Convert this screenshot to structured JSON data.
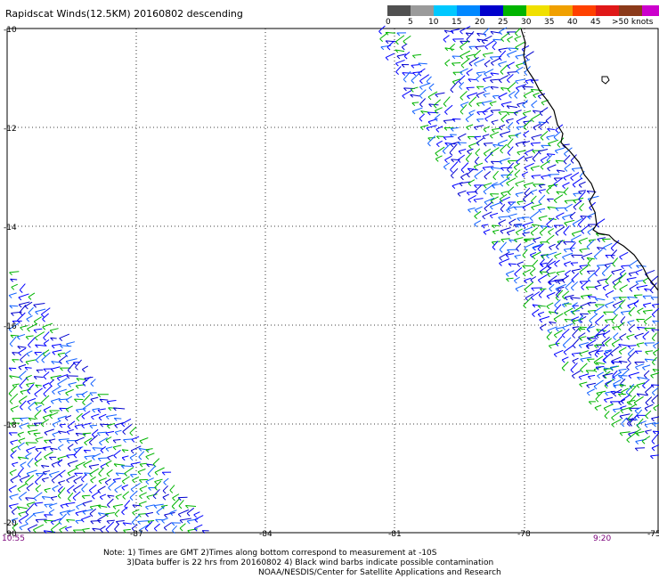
{
  "title": "Rapidscat Winds(12.5KM) 20160802 descending",
  "scale": {
    "colors": [
      "#505050",
      "#9a9a9a",
      "#00c8ff",
      "#0088ff",
      "#0000cc",
      "#00b400",
      "#f0e000",
      "#f0a000",
      "#ff4000",
      "#e01818",
      "#8b3a1a",
      "#cc00cc",
      "#7a00aa"
    ],
    "labels": [
      "0",
      "5",
      "10",
      "15",
      "20",
      "25",
      "30",
      "35",
      "40",
      "45",
      ">50 knots"
    ]
  },
  "axes": {
    "lon_ticks": [
      "-90",
      "-87",
      "-84",
      "-81",
      "-78",
      "-75"
    ],
    "lat_ticks": [
      "-10",
      "-12",
      "-14",
      "-16",
      "-18",
      "-20"
    ]
  },
  "times": {
    "left": "10:55",
    "right": "9:20"
  },
  "notes": {
    "line1": "Note: 1) Times are GMT 2)Times along bottom correspond to measurement at -10S",
    "line2": "3)Data buffer is 22 hrs from 20160802 4) Black wind barbs indicate possible contamination",
    "line3": "NOAA/NESDIS/Center for Satellite Applications and Research"
  }
}
